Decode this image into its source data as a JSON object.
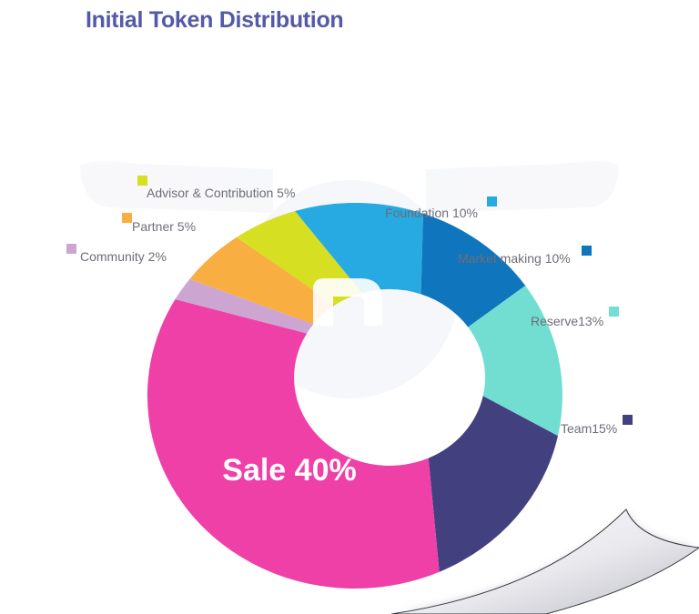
{
  "header": {
    "title": "Initial Token Distribution"
  },
  "chart_data": {
    "type": "pie",
    "title": "Initial Token Distribution",
    "donut": true,
    "slices": [
      {
        "label": "Team15%",
        "value": 15,
        "color": "#43407f"
      },
      {
        "label": "Sale 40%",
        "value": 40,
        "color": "#ee40a7"
      },
      {
        "label": "Community 2%",
        "value": 2,
        "color": "#cda5d1"
      },
      {
        "label": "Partner 5%",
        "value": 5,
        "color": "#f8ae40"
      },
      {
        "label": "Advisor & Contribution 5%",
        "value": 5,
        "color": "#d7df23"
      },
      {
        "label": "Foundation 10%",
        "value": 10,
        "color": "#27aae1"
      },
      {
        "label": "Market making 10%",
        "value": 10,
        "color": "#0f75bc"
      },
      {
        "label": "Reserve13%",
        "value": 13,
        "color": "#72ded2"
      }
    ]
  },
  "watermark": {
    "icon": "logo-n-icon"
  }
}
